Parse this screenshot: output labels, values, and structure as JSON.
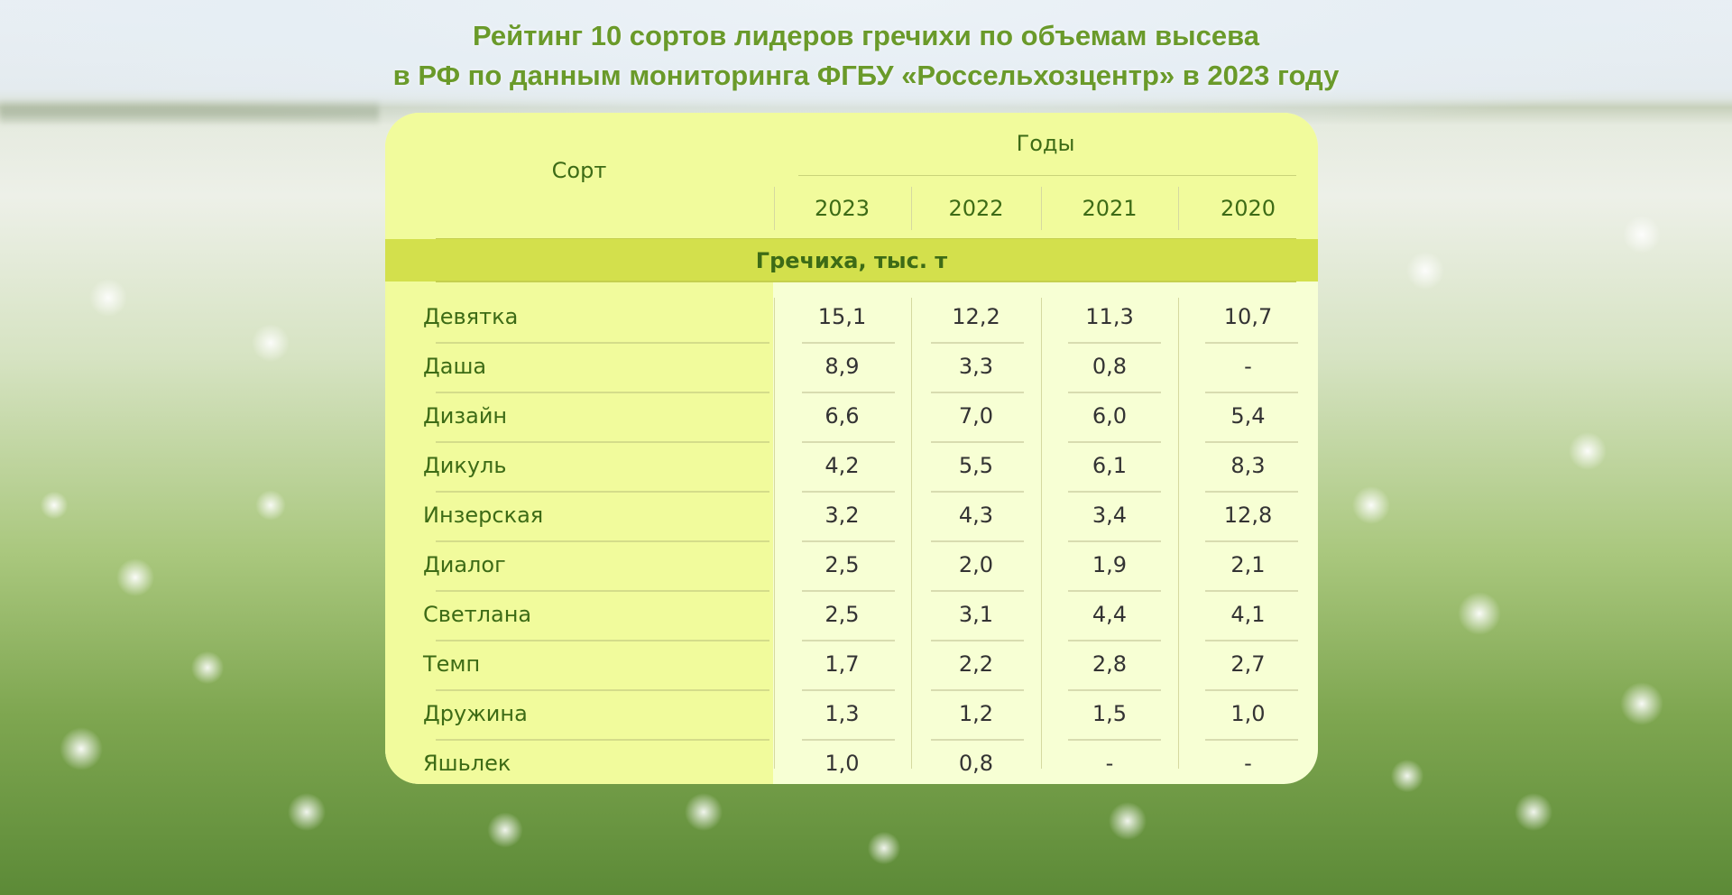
{
  "title": {
    "line1": "Рейтинг 10 сортов лидеров гречихи по объемам высева",
    "line2": "в РФ по данным мониторинга ФГБУ «Россельхозцентр» в 2023 году"
  },
  "table": {
    "col_sort": "Сорт",
    "col_years": "Годы",
    "years": [
      "2023",
      "2022",
      "2021",
      "2020"
    ],
    "section": "Гречиха, тыс. т",
    "rows": [
      {
        "name": "Девятка",
        "values": [
          "15,1",
          "12,2",
          "11,3",
          "10,7"
        ]
      },
      {
        "name": "Даша",
        "values": [
          "8,9",
          "3,3",
          "0,8",
          "-"
        ]
      },
      {
        "name": "Дизайн",
        "values": [
          "6,6",
          "7,0",
          "6,0",
          "5,4"
        ]
      },
      {
        "name": "Дикуль",
        "values": [
          "4,2",
          "5,5",
          "6,1",
          "8,3"
        ]
      },
      {
        "name": "Инзерская",
        "values": [
          "3,2",
          "4,3",
          "3,4",
          "12,8"
        ]
      },
      {
        "name": "Диалог",
        "values": [
          "2,5",
          "2,0",
          "1,9",
          "2,1"
        ]
      },
      {
        "name": "Светлана",
        "values": [
          "2,5",
          "3,1",
          "4,4",
          "4,1"
        ]
      },
      {
        "name": "Темп",
        "values": [
          "1,7",
          "2,2",
          "2,8",
          "2,7"
        ]
      },
      {
        "name": "Дружина",
        "values": [
          "1,3",
          "1,2",
          "1,5",
          "1,0"
        ]
      },
      {
        "name": "Яшьлек",
        "values": [
          "1,0",
          "0,8",
          "-",
          "-"
        ]
      }
    ]
  },
  "colors": {
    "title": "#6a9a2a",
    "header_bg": "#f1fb9c",
    "band_bg": "#d3e04c",
    "body_bg": "#f7ffd4",
    "label_text": "#3d6b16"
  }
}
